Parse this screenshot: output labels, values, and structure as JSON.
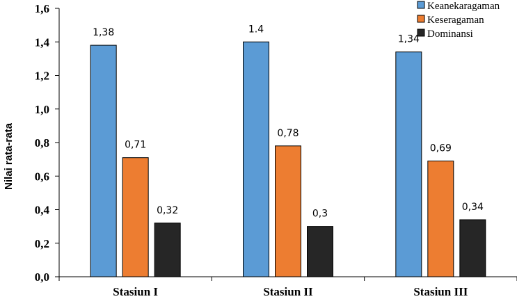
{
  "chart_data": {
    "type": "bar",
    "title": "",
    "xlabel": "",
    "ylabel": "Nilai rata-rata",
    "ylim": [
      0,
      1.6
    ],
    "yticks": [
      "0,0",
      "0,2",
      "0,4",
      "0,6",
      "0,8",
      "1,0",
      "1,2",
      "1,4",
      "1,6"
    ],
    "categories": [
      "Stasiun I",
      "Stasiun  II",
      "Stasiun III"
    ],
    "series": [
      {
        "name": "Keanekaragaman",
        "color": "#5B9BD5",
        "values": [
          1.38,
          1.4,
          1.34
        ],
        "labels": [
          "1,38",
          "1.4",
          "1,34"
        ]
      },
      {
        "name": "Keseragaman",
        "color": "#ED7D31",
        "values": [
          0.71,
          0.78,
          0.69
        ],
        "labels": [
          "0,71",
          "0,78",
          "0,69"
        ]
      },
      {
        "name": "Dominansi",
        "color": "#262626",
        "values": [
          0.32,
          0.3,
          0.34
        ],
        "labels": [
          "0,32",
          "0,3",
          "0,34"
        ]
      }
    ],
    "grid": false,
    "legend_position": "top-right"
  }
}
